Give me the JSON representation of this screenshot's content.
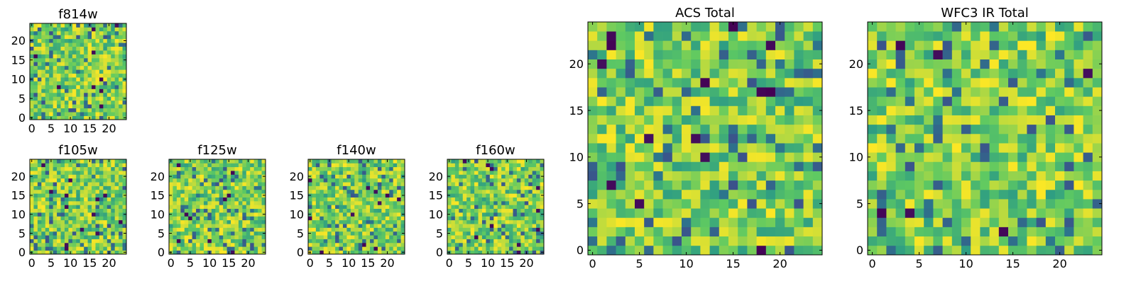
{
  "figure": {
    "colormap": [
      "#440154",
      "#3b528b",
      "#21918c",
      "#5ec962",
      "#fde725"
    ]
  },
  "chart_data": [
    {
      "type": "heatmap",
      "id": "f814w",
      "title": "f814w",
      "grid": [
        25,
        25
      ],
      "xlim": [
        -0.5,
        24.5
      ],
      "ylim": [
        -0.5,
        24.5
      ],
      "xticks": [
        0,
        5,
        10,
        15,
        20
      ],
      "yticks": [
        0,
        5,
        10,
        15,
        20
      ],
      "seed": 11
    },
    {
      "type": "heatmap",
      "id": "f105w",
      "title": "f105w",
      "grid": [
        25,
        25
      ],
      "xlim": [
        -0.5,
        24.5
      ],
      "ylim": [
        -0.5,
        24.5
      ],
      "xticks": [
        0,
        5,
        10,
        15,
        20
      ],
      "yticks": [
        0,
        5,
        10,
        15,
        20
      ],
      "seed": 23
    },
    {
      "type": "heatmap",
      "id": "f125w",
      "title": "f125w",
      "grid": [
        25,
        25
      ],
      "xlim": [
        -0.5,
        24.5
      ],
      "ylim": [
        -0.5,
        24.5
      ],
      "xticks": [
        0,
        5,
        10,
        15,
        20
      ],
      "yticks": [
        0,
        5,
        10,
        15,
        20
      ],
      "seed": 37
    },
    {
      "type": "heatmap",
      "id": "f140w",
      "title": "f140w",
      "grid": [
        25,
        25
      ],
      "xlim": [
        -0.5,
        24.5
      ],
      "ylim": [
        -0.5,
        24.5
      ],
      "xticks": [
        0,
        5,
        10,
        15,
        20
      ],
      "yticks": [
        0,
        5,
        10,
        15,
        20
      ],
      "seed": 41
    },
    {
      "type": "heatmap",
      "id": "f160w",
      "title": "f160w",
      "grid": [
        25,
        25
      ],
      "xlim": [
        -0.5,
        24.5
      ],
      "ylim": [
        -0.5,
        24.5
      ],
      "xticks": [
        0,
        5,
        10,
        15,
        20
      ],
      "yticks": [
        0,
        5,
        10,
        15,
        20
      ],
      "seed": 53
    },
    {
      "type": "heatmap",
      "id": "acs-total",
      "title": "ACS Total",
      "grid": [
        25,
        25
      ],
      "xlim": [
        -0.5,
        24.5
      ],
      "ylim": [
        -0.5,
        24.5
      ],
      "xticks": [
        0,
        5,
        10,
        15,
        20
      ],
      "yticks": [
        0,
        5,
        10,
        15,
        20
      ],
      "seed": 67
    },
    {
      "type": "heatmap",
      "id": "wfc3-ir-total",
      "title": "WFC3 IR Total",
      "grid": [
        25,
        25
      ],
      "xlim": [
        -0.5,
        24.5
      ],
      "ylim": [
        -0.5,
        24.5
      ],
      "xticks": [
        0,
        5,
        10,
        15,
        20
      ],
      "yticks": [
        0,
        5,
        10,
        15,
        20
      ],
      "seed": 79
    }
  ]
}
